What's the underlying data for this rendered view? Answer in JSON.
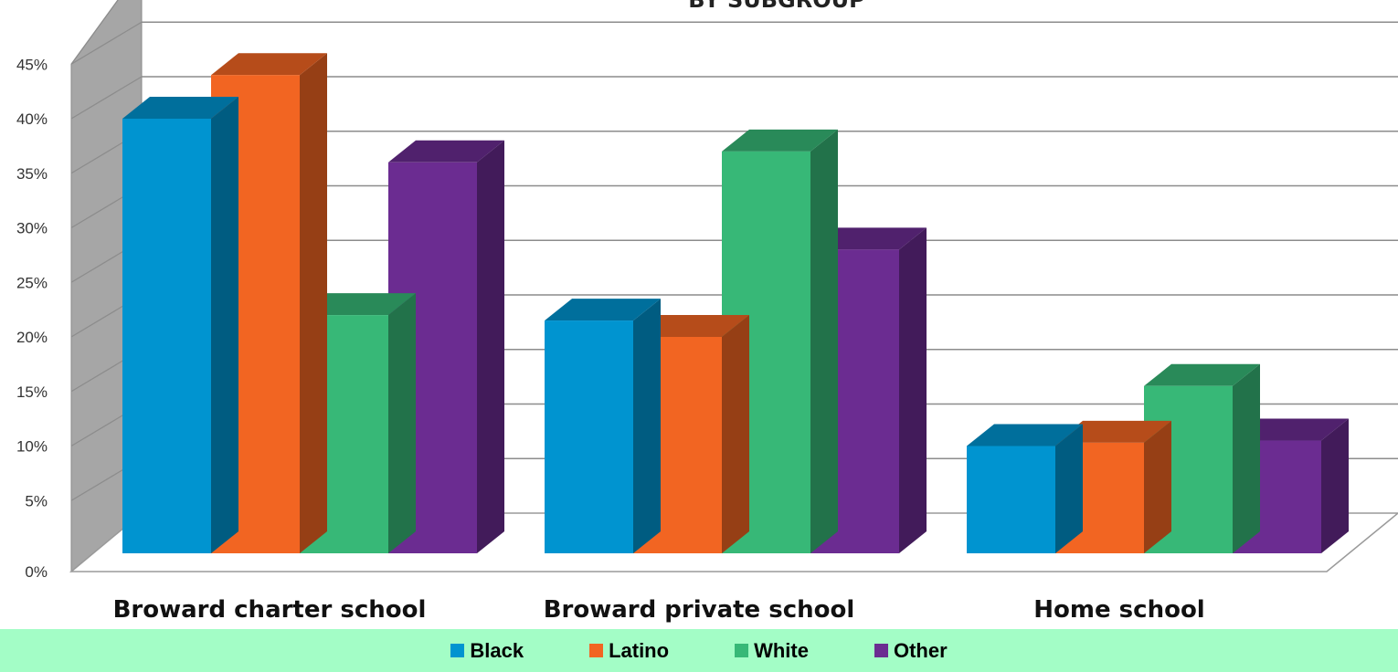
{
  "chart_data": {
    "type": "bar",
    "title": "BY SUBGROUP",
    "categories": [
      "Broward charter school",
      "Broward private school",
      "Home school"
    ],
    "series": [
      {
        "name": "Black",
        "color": "#0094d0",
        "values": [
          40,
          21.5,
          10
        ]
      },
      {
        "name": "Latino",
        "color": "#f26522",
        "values": [
          44,
          20,
          10.3
        ]
      },
      {
        "name": "White",
        "color": "#37b877",
        "values": [
          22,
          37,
          15.5
        ]
      },
      {
        "name": "Other",
        "color": "#6b2c91",
        "values": [
          36,
          28,
          10.5
        ]
      }
    ],
    "y_ticks": [
      "0%",
      "5%",
      "10%",
      "15%",
      "20%",
      "25%",
      "30%",
      "35%",
      "40%",
      "45%"
    ],
    "ylim": [
      0,
      45
    ],
    "grid": true,
    "legend_position": "bottom",
    "style": "3d-bar"
  }
}
